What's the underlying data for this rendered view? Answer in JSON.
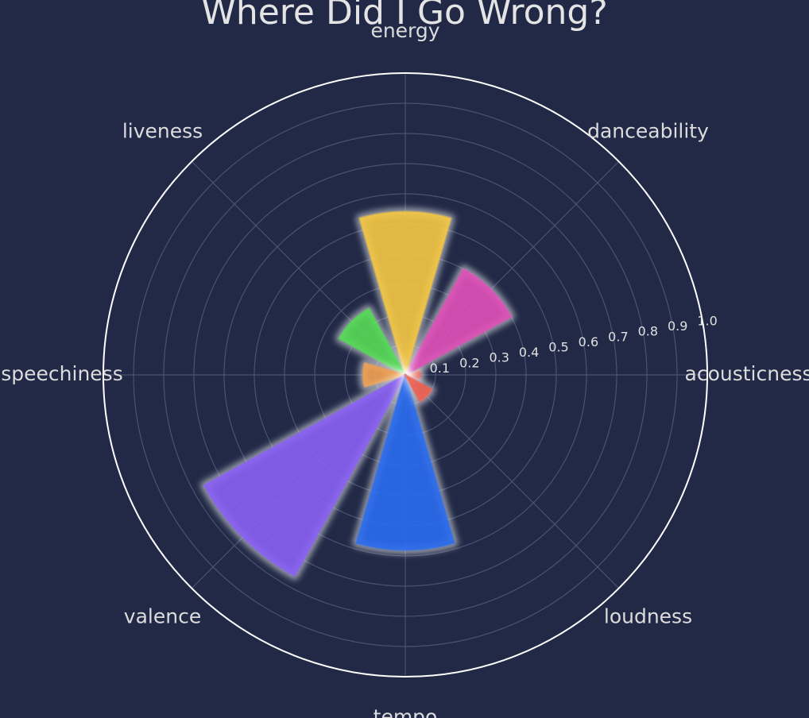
{
  "chart_data": {
    "type": "polar-bar",
    "title": "Where Did I Go Wrong?",
    "categories": [
      "acousticness",
      "danceability",
      "energy",
      "liveness",
      "speechiness",
      "valence",
      "tempo",
      "loudness"
    ],
    "values": [
      0.05,
      0.4,
      0.54,
      0.25,
      0.14,
      0.76,
      0.58,
      0.1
    ],
    "colors": [
      "#e8564a",
      "#e050b8",
      "#f5c842",
      "#55dc55",
      "#f0a050",
      "#8a60f5",
      "#2a6cf0",
      "#f06050"
    ],
    "r_ticks": [
      0.1,
      0.2,
      0.3,
      0.4,
      0.5,
      0.6,
      0.7,
      0.8,
      0.9,
      1.0
    ],
    "r_tick_labels": [
      "0.1",
      "0.2",
      "0.3",
      "0.4",
      "0.5",
      "0.6",
      "0.7",
      "0.8",
      "0.9",
      "1.0"
    ],
    "rlim": [
      0,
      1.0
    ],
    "grid": true,
    "style": {
      "background": "#212946",
      "grid_color": "#4a5273",
      "outer_ring": "#ffffff"
    }
  }
}
